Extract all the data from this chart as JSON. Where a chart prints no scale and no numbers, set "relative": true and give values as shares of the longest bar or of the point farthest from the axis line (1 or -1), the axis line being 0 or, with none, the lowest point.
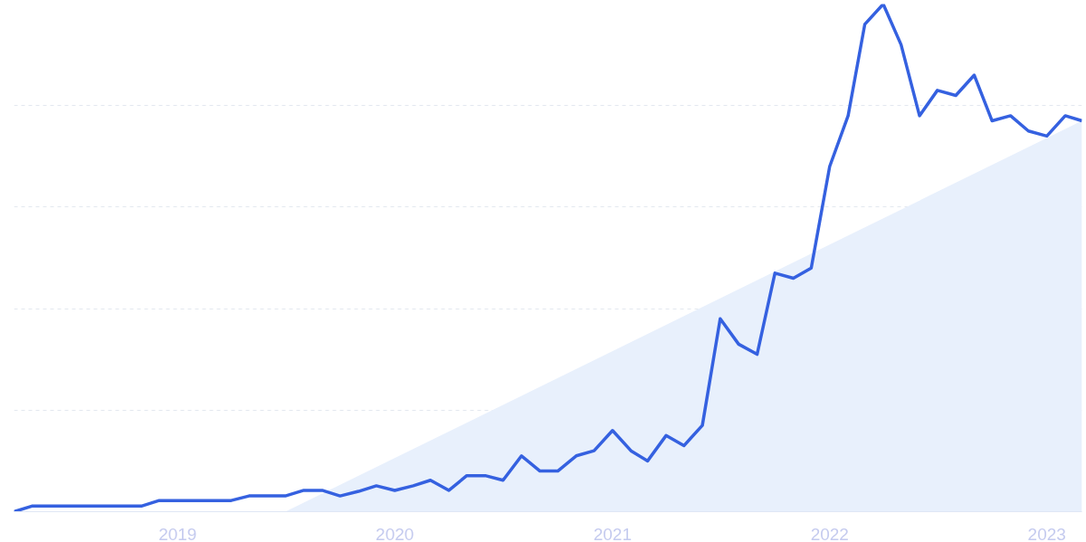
{
  "chart_data": {
    "type": "line",
    "relative": true,
    "grid": "y",
    "x": [
      "2018-04",
      "2018-05",
      "2018-06",
      "2018-07",
      "2018-08",
      "2018-09",
      "2018-10",
      "2018-11",
      "2018-12",
      "2019-01",
      "2019-02",
      "2019-03",
      "2019-04",
      "2019-05",
      "2019-06",
      "2019-07",
      "2019-08",
      "2019-09",
      "2019-10",
      "2019-11",
      "2019-12",
      "2020-01",
      "2020-02",
      "2020-03",
      "2020-04",
      "2020-05",
      "2020-06",
      "2020-07",
      "2020-08",
      "2020-09",
      "2020-10",
      "2020-11",
      "2020-12",
      "2021-01",
      "2021-02",
      "2021-03",
      "2021-04",
      "2021-05",
      "2021-06",
      "2021-07",
      "2021-08",
      "2021-09",
      "2021-10",
      "2021-11",
      "2021-12",
      "2022-01",
      "2022-02",
      "2022-03",
      "2022-04",
      "2022-05",
      "2022-06",
      "2022-07",
      "2022-08",
      "2022-09",
      "2022-10",
      "2022-11",
      "2022-12",
      "2023-01",
      "2023-02",
      "2023-03"
    ],
    "xlim": [
      "2018-04",
      "2023-03"
    ],
    "xticks": [
      {
        "value": "2019-01",
        "label": "2019"
      },
      {
        "value": "2020-01",
        "label": "2020"
      },
      {
        "value": "2021-01",
        "label": "2021"
      },
      {
        "value": "2022-01",
        "label": "2022"
      },
      {
        "value": "2023-01",
        "label": "2023"
      }
    ],
    "series": [
      {
        "type": "area",
        "color": "#e8f0fc",
        "x": [
          "2019-07",
          "2023-03"
        ],
        "values": [
          0,
          0.77
        ]
      },
      {
        "color": "#3561e0",
        "values": [
          0,
          0.011,
          0.011,
          0.011,
          0.011,
          0.011,
          0.011,
          0.011,
          0.022,
          0.022,
          0.022,
          0.022,
          0.022,
          0.031,
          0.031,
          0.031,
          0.042,
          0.042,
          0.031,
          0.04,
          0.051,
          0.042,
          0.051,
          0.062,
          0.042,
          0.071,
          0.071,
          0.062,
          0.11,
          0.08,
          0.08,
          0.11,
          0.12,
          0.16,
          0.12,
          0.1,
          0.15,
          0.13,
          0.17,
          0.38,
          0.33,
          0.31,
          0.47,
          0.46,
          0.48,
          0.68,
          0.78,
          0.96,
          1,
          0.92,
          0.78,
          0.83,
          0.82,
          0.86,
          0.77,
          0.78,
          0.75,
          0.74,
          0.78,
          0.77
        ]
      }
    ]
  }
}
